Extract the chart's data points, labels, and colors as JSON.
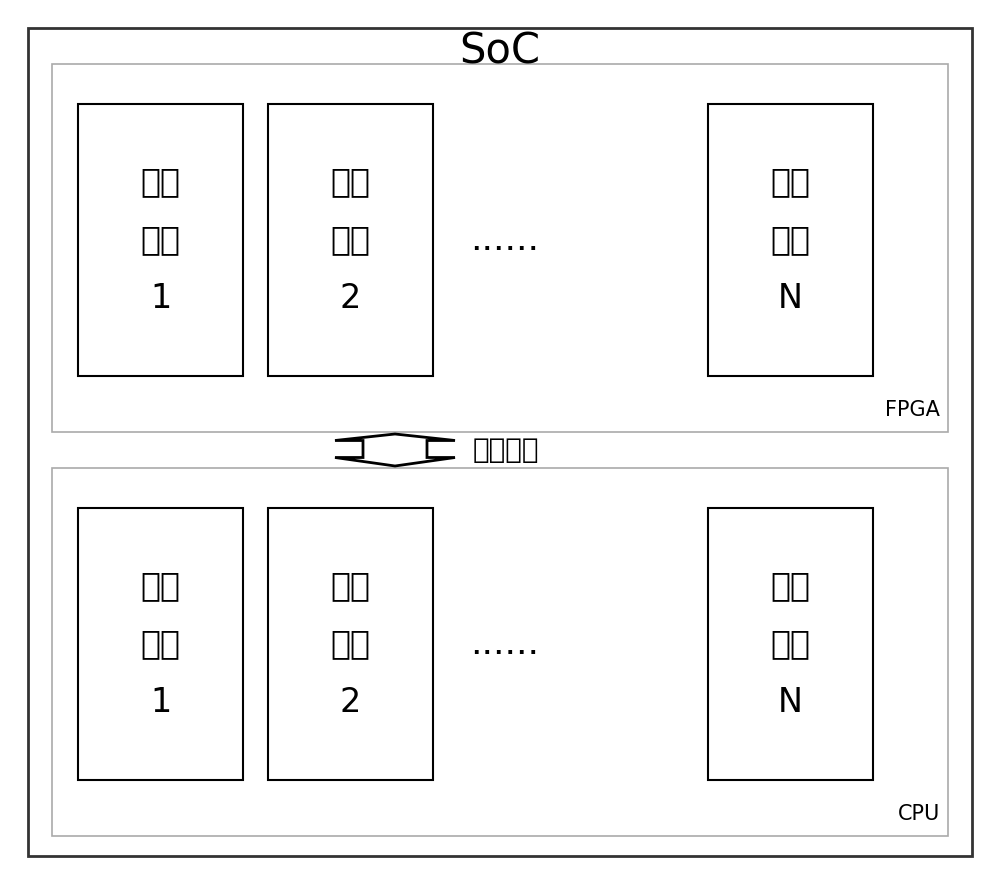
{
  "title": "SoC",
  "fpga_label": "FPGA",
  "cpu_label": "CPU",
  "arrow_label": "管理接口",
  "func_blocks": [
    {
      "lines": [
        "功能",
        "模块",
        "1"
      ]
    },
    {
      "lines": [
        "功能",
        "模块",
        "2"
      ]
    },
    {
      "lines": [
        "功能",
        "模块",
        "N"
      ]
    }
  ],
  "mgmt_blocks": [
    {
      "lines": [
        "管理",
        "任务",
        "1"
      ]
    },
    {
      "lines": [
        "管理",
        "任务",
        "2"
      ]
    },
    {
      "lines": [
        "管理",
        "任务",
        "N"
      ]
    }
  ],
  "dots": "......",
  "bg_color": "#ffffff",
  "border_color": "#000000",
  "text_color": "#000000",
  "box_color": "#ffffff",
  "soc_border_color": "#333333",
  "fpga_border_color": "#aaaaaa",
  "cpu_border_color": "#aaaaaa",
  "inner_border_color": "#000000",
  "figsize": [
    10.0,
    8.84
  ],
  "dpi": 100
}
